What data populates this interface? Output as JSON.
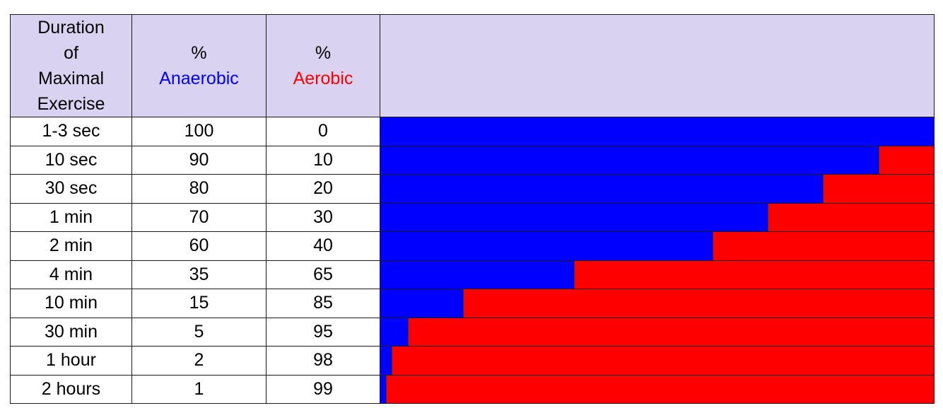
{
  "header": {
    "duration_lines": [
      "Duration",
      "of",
      "Maximal",
      "Exercise"
    ],
    "anaerobic_pct": "%",
    "anaerobic_label": "Anaerobic",
    "aerobic_pct": "%",
    "aerobic_label": "Aerobic"
  },
  "colors": {
    "anaerobic": "#0000ff",
    "aerobic": "#ff0000",
    "header_bg": "#d9d2f0"
  },
  "chart_data": {
    "type": "bar",
    "orientation": "horizontal-stacked-100",
    "categories": [
      "1-3 sec",
      "10 sec",
      "30 sec",
      "1 min",
      "2 min",
      "4 min",
      "10 min",
      "30 min",
      "1 hour",
      "2 hours"
    ],
    "series": [
      {
        "name": "Anaerobic",
        "values": [
          100,
          90,
          80,
          70,
          60,
          35,
          15,
          5,
          2,
          1
        ]
      },
      {
        "name": "Aerobic",
        "values": [
          0,
          10,
          20,
          30,
          40,
          65,
          85,
          95,
          98,
          99
        ]
      }
    ],
    "xlim": [
      0,
      100
    ]
  },
  "rows": [
    {
      "duration": "1-3 sec",
      "anaerobic": "100",
      "aerobic": "0"
    },
    {
      "duration": "10 sec",
      "anaerobic": "90",
      "aerobic": "10"
    },
    {
      "duration": "30 sec",
      "anaerobic": "80",
      "aerobic": "20"
    },
    {
      "duration": "1 min",
      "anaerobic": "70",
      "aerobic": "30"
    },
    {
      "duration": "2 min",
      "anaerobic": "60",
      "aerobic": "40"
    },
    {
      "duration": "4 min",
      "anaerobic": "35",
      "aerobic": "65"
    },
    {
      "duration": "10 min",
      "anaerobic": "15",
      "aerobic": "85"
    },
    {
      "duration": "30 min",
      "anaerobic": "5",
      "aerobic": "95"
    },
    {
      "duration": "1 hour",
      "anaerobic": "2",
      "aerobic": "98"
    },
    {
      "duration": "2 hours",
      "anaerobic": "1",
      "aerobic": "99"
    }
  ]
}
